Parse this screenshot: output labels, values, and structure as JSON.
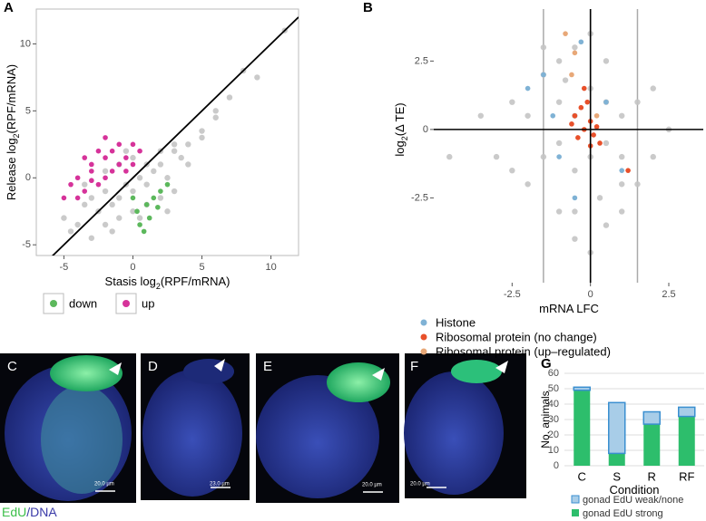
{
  "panel_labels": [
    "A",
    "B",
    "G"
  ],
  "chart_data": [
    {
      "type": "scatter",
      "xlabel": {
        "pre": "Stasis log",
        "sub": "2",
        "post": "(RPF/mRNA)"
      },
      "ylabel": {
        "pre": "Release log",
        "sub": "2",
        "post": "(RPF/mRNA)"
      },
      "xlim": [
        -7,
        12
      ],
      "ylim": [
        -5.8,
        12.6
      ],
      "xticks": [
        -5,
        0,
        5,
        10
      ],
      "yticks": [
        -5,
        0,
        5,
        10
      ],
      "reference_lines": [
        {
          "slope": 1,
          "intercept": 0,
          "color": "#000000"
        }
      ],
      "series": [
        {
          "color": "#c4c4c4",
          "x": [
            -5,
            -4,
            -3.5,
            -3,
            -2.5,
            -2,
            -1.5,
            -1,
            -0.5,
            0,
            0.5,
            1,
            1.5,
            2,
            2.5,
            3,
            3.5,
            4,
            5,
            6,
            7,
            8,
            -4.5,
            -3,
            -2,
            -1,
            0,
            1,
            2,
            3,
            -2,
            -1,
            0,
            1,
            2,
            3,
            4,
            5,
            6,
            9,
            11,
            -1.5,
            0.5,
            2.5,
            -3.5,
            -0.5
          ],
          "values": [
            -3,
            -3.5,
            -2,
            -1.5,
            -2.5,
            -1,
            -2,
            -1.5,
            -0.5,
            -1,
            0,
            -0.5,
            0.5,
            1,
            0,
            2,
            1.5,
            2.5,
            3.5,
            4.5,
            6,
            8,
            -4,
            -4.5,
            -3.5,
            -3,
            -2.5,
            -2,
            -1.5,
            -1,
            0.5,
            1,
            1.5,
            1,
            2,
            2.5,
            1,
            3,
            5,
            7.5,
            11,
            -4,
            -3,
            -2.5,
            -0.5,
            2
          ]
        },
        {
          "name": "down",
          "color": "#5cb85c",
          "x": [
            0,
            0.3,
            0.5,
            1,
            1.2,
            1.5,
            2,
            0.8,
            2.5,
            1.8
          ],
          "values": [
            -1.5,
            -2.5,
            -3.5,
            -2,
            -3,
            -1.5,
            -1,
            -4,
            -0.5,
            -2.2
          ]
        },
        {
          "name": "up",
          "color": "#d6339a",
          "x": [
            -5,
            -4.5,
            -4,
            -3.5,
            -3,
            -3,
            -2.5,
            -2,
            -2,
            -1.5,
            -1,
            -1,
            -0.5,
            0,
            0.5,
            -4,
            -2.5,
            -1.5,
            -3.5,
            -2,
            -0.5,
            -3,
            0
          ],
          "values": [
            -1.5,
            -0.5,
            0,
            -1,
            0.5,
            1,
            -0.5,
            1.5,
            0,
            2,
            1,
            2.5,
            1.5,
            1,
            2,
            -1.5,
            2,
            0.5,
            1.5,
            3,
            0.5,
            -0.2,
            2.5
          ]
        }
      ]
    },
    {
      "type": "scatter",
      "xlabel": {
        "pre": "mRNA LFC"
      },
      "ylabel": {
        "pre": "log",
        "sub": "2",
        "post": "(Δ TE)"
      },
      "xlim": [
        -5,
        3.6
      ],
      "ylim": [
        -5.6,
        4.4
      ],
      "xticks": [
        -2.5,
        0,
        2.5
      ],
      "yticks": [
        -2.5,
        0,
        2.5
      ],
      "vlines": [
        {
          "x": -1.5,
          "color": "#aaaaaa"
        },
        {
          "x": 0,
          "color": "#000000"
        },
        {
          "x": 1.5,
          "color": "#aaaaaa"
        }
      ],
      "hlines": [
        {
          "y": 0,
          "color": "#000000"
        }
      ],
      "series": [
        {
          "color": "#c4c4c4",
          "x": [
            -4.5,
            -3.5,
            -3,
            -2.5,
            -2,
            -1.5,
            -1,
            -0.5,
            0,
            0.5,
            1,
            1.5,
            2,
            2.5,
            -2,
            -1.5,
            -1,
            -0.5,
            0,
            0.5,
            1,
            1.5,
            -1,
            -0.5,
            0,
            0.5,
            1,
            -1.5,
            -0.5,
            0.5,
            -2.5,
            2,
            -1,
            0,
            1,
            -0.5,
            0.3,
            -0.8
          ],
          "values": [
            -1,
            0.5,
            -1,
            1,
            -2,
            2,
            -3,
            3,
            -4.5,
            2.5,
            -2,
            1,
            -1,
            0,
            0.5,
            -1,
            1,
            -1.5,
            1.5,
            -0.5,
            0.5,
            -2,
            -0.5,
            0.5,
            -1,
            1,
            -1,
            3,
            -3,
            -3.5,
            -1.5,
            1.5,
            2.5,
            3.5,
            -3,
            -4,
            -2.5,
            1.8
          ]
        },
        {
          "name": "Histone",
          "color": "#7fb2d5",
          "x": [
            -2,
            -1.5,
            -1,
            -0.5,
            0.5,
            1,
            -0.3,
            -1.2
          ],
          "values": [
            1.5,
            2,
            -1,
            -2.5,
            1,
            -1.5,
            3.2,
            0.5
          ]
        },
        {
          "name": "Ribosomal protein (no change)",
          "color": "#e8502a",
          "x": [
            -0.5,
            -0.3,
            -0.2,
            0,
            0.1,
            -0.4,
            -0.1,
            0.2,
            -0.6,
            0.3,
            1.2,
            -0.2,
            0
          ],
          "values": [
            0.5,
            0.8,
            0,
            0.3,
            -0.2,
            -0.3,
            1,
            0.1,
            0.2,
            -0.5,
            -1.5,
            1.5,
            -0.6
          ]
        },
        {
          "name": "Ribosomal protein (up–regulated)",
          "color": "#e8a878",
          "x": [
            -0.8,
            -0.5,
            -0.6,
            0.2
          ],
          "values": [
            3.5,
            2.8,
            2,
            0.5
          ]
        }
      ]
    },
    {
      "type": "stacked_bar",
      "xlabel": {
        "pre": "Condition"
      },
      "ylabel": {
        "pre": "No. animals"
      },
      "categories": [
        "C",
        "S",
        "R",
        "RF"
      ],
      "ylim": [
        0,
        60
      ],
      "yticks": [
        0,
        10,
        20,
        30,
        40,
        50,
        60
      ],
      "grid": true,
      "series": [
        {
          "name": "gonad EdU strong",
          "color": "#2dbe6c",
          "values": [
            49,
            8,
            27,
            32
          ]
        },
        {
          "name": "gonad EdU weak/none",
          "color": "#a8cde8",
          "values": [
            2,
            33,
            8,
            6
          ]
        }
      ]
    }
  ],
  "images": [
    {
      "label": "C",
      "scale_bar": "20.0 µm"
    },
    {
      "label": "D",
      "scale_bar": "23.0 µm"
    },
    {
      "label": "E",
      "scale_bar": "20.0 µm"
    },
    {
      "label": "F",
      "scale_bar": "20.0 µm"
    }
  ],
  "image_caption": {
    "first": "EdU",
    "second": "/DNA"
  }
}
